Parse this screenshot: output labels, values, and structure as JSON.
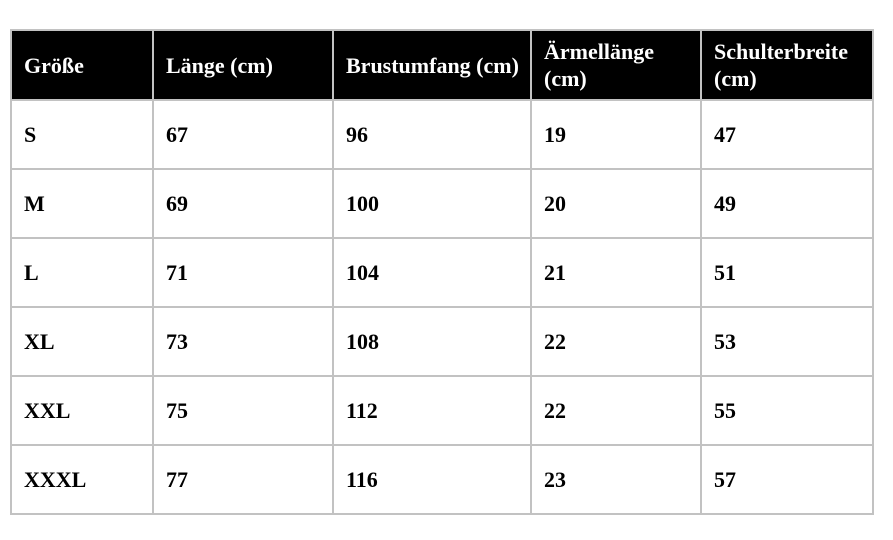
{
  "table": {
    "headers": [
      "Größe",
      "Länge (cm)",
      "Brustumfang (cm)",
      "Ärmellänge (cm)",
      "Schulterbreite (cm)"
    ],
    "rows": [
      [
        "S",
        "67",
        "96",
        "19",
        "47"
      ],
      [
        "M",
        "69",
        "100",
        "20",
        "49"
      ],
      [
        "L",
        "71",
        "104",
        "21",
        "51"
      ],
      [
        "XL",
        "73",
        "108",
        "22",
        "53"
      ],
      [
        "XXL",
        "75",
        "112",
        "22",
        "55"
      ],
      [
        "XXXL",
        "77",
        "116",
        "23",
        "57"
      ]
    ]
  },
  "colors": {
    "header_background": "#000000",
    "header_text": "#ffffff",
    "border": "#c2c2c2",
    "cell_text": "#000000"
  }
}
